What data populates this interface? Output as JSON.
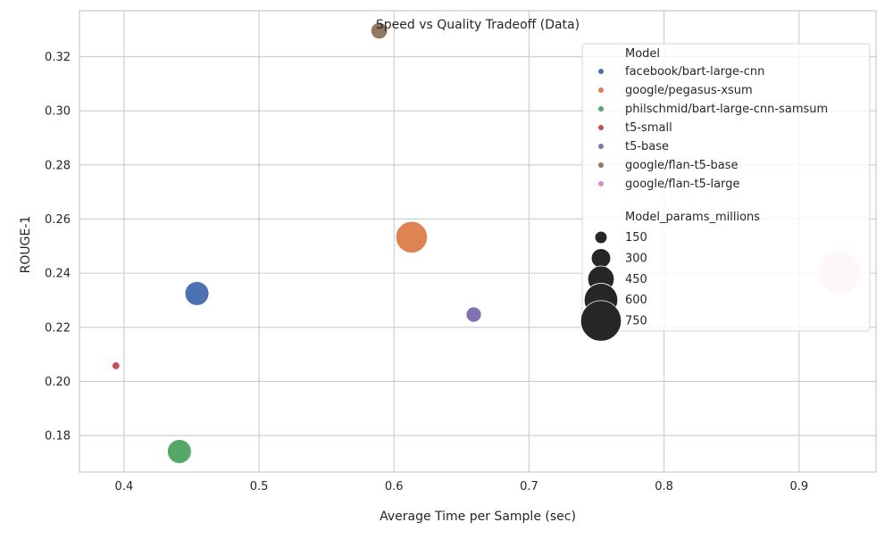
{
  "chart_data": {
    "type": "scatter",
    "title": "Speed vs Quality Tradeoff (Data)",
    "xlabel": "Average Time per Sample (sec)",
    "ylabel": "ROUGE-1",
    "xlim": [
      0.367,
      0.957
    ],
    "ylim": [
      0.1665,
      0.337
    ],
    "xticks": [
      0.4,
      0.5,
      0.6,
      0.7,
      0.8,
      0.9
    ],
    "xtick_labels": [
      "0.4",
      "0.5",
      "0.6",
      "0.7",
      "0.8",
      "0.9"
    ],
    "yticks": [
      0.18,
      0.2,
      0.22,
      0.24,
      0.26,
      0.28,
      0.3,
      0.32
    ],
    "ytick_labels": [
      "0.18",
      "0.20",
      "0.22",
      "0.24",
      "0.26",
      "0.28",
      "0.30",
      "0.32"
    ],
    "grid": true,
    "legend_placement": "top-right",
    "hue_legend_title": "Model",
    "size_legend_title": "Model_params_millions",
    "size_legend_values": [
      150,
      300,
      450,
      600,
      750
    ],
    "size_legend_labels": [
      "150",
      "300",
      "450",
      "600",
      "750"
    ],
    "series": [
      {
        "name": "facebook/bart-large-cnn",
        "color": "#4c72b0",
        "x": 0.454,
        "y": 0.2325,
        "params": 406
      },
      {
        "name": "google/pegasus-xsum",
        "color": "#dd8452",
        "x": 0.613,
        "y": 0.2533,
        "params": 568
      },
      {
        "name": "philschmid/bart-large-cnn-samsum",
        "color": "#55a868",
        "x": 0.441,
        "y": 0.1741,
        "params": 406
      },
      {
        "name": "t5-small",
        "color": "#c44e52",
        "x": 0.394,
        "y": 0.2058,
        "params": 60
      },
      {
        "name": "t5-base",
        "color": "#8172b3",
        "x": 0.659,
        "y": 0.2247,
        "params": 220
      },
      {
        "name": "google/flan-t5-base",
        "color": "#937860",
        "x": 0.589,
        "y": 0.3296,
        "params": 248
      },
      {
        "name": "google/flan-t5-large",
        "color": "#f2d7ea",
        "legend_color": "#da8bc3",
        "x": 0.93,
        "y": 0.2402,
        "params": 783
      }
    ]
  }
}
